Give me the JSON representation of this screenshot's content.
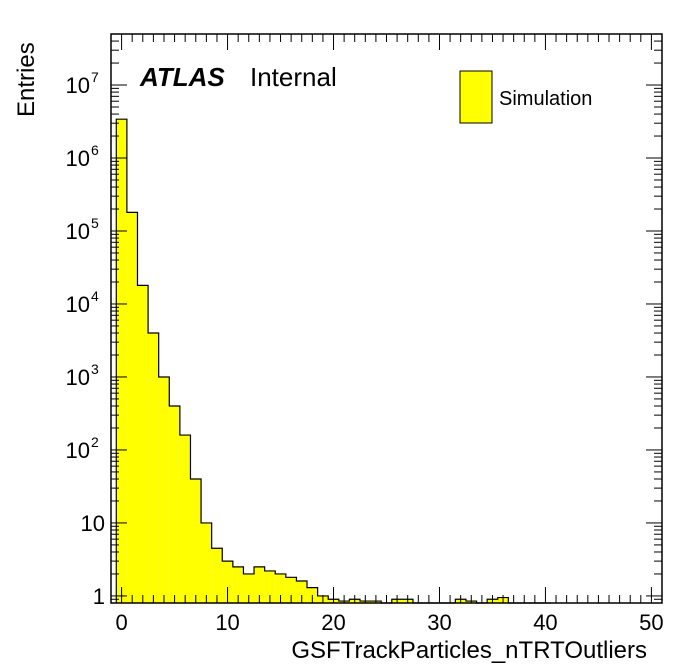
{
  "chart_data": {
    "type": "bar",
    "subtype": "histogram",
    "xlabel": "GSFTrackParticles_nTRTOutliers",
    "ylabel": "Entries",
    "xlim": [
      -1,
      51
    ],
    "ylim": [
      0.8,
      50000000
    ],
    "yscale": "log",
    "bin_width": 1,
    "x_ticks": [
      0,
      10,
      20,
      30,
      40,
      50
    ],
    "y_ticks": [
      {
        "value": 1,
        "base": "1",
        "exp": ""
      },
      {
        "value": 10,
        "base": "10",
        "exp": ""
      },
      {
        "value": 100,
        "base": "10",
        "exp": "2"
      },
      {
        "value": 1000,
        "base": "10",
        "exp": "3"
      },
      {
        "value": 10000,
        "base": "10",
        "exp": "4"
      },
      {
        "value": 100000,
        "base": "10",
        "exp": "5"
      },
      {
        "value": 1000000,
        "base": "10",
        "exp": "6"
      },
      {
        "value": 10000000,
        "base": "10",
        "exp": "7"
      }
    ],
    "fill_color": "#ffff00",
    "line_color": "#000000",
    "legend_position": "top-right",
    "series": [
      {
        "name": "Simulation",
        "bin_low_edges": [
          -0.5,
          0.5,
          1.5,
          2.5,
          3.5,
          4.5,
          5.5,
          6.5,
          7.5,
          8.5,
          9.5,
          10.5,
          11.5,
          12.5,
          13.5,
          14.5,
          15.5,
          16.5,
          17.5,
          18.5,
          19.5,
          20.5,
          21.5,
          22.5,
          23.5,
          24.5,
          25.5,
          26.5,
          27.5,
          28.5,
          29.5,
          30.5,
          31.5,
          32.5,
          33.5,
          34.5,
          35.5,
          36.5,
          37.5,
          38.5,
          39.5
        ],
        "values": [
          3400000,
          180000,
          18000,
          4000,
          1000,
          400,
          160,
          40,
          10,
          4.5,
          3,
          2.5,
          2,
          2.5,
          2.2,
          2,
          1.8,
          1.6,
          1.3,
          1,
          0.9,
          0.85,
          0.9,
          0.85,
          0.85,
          0.8,
          0.9,
          0.9,
          0.8,
          0.8,
          0.75,
          0.7,
          0.9,
          0.85,
          0.75,
          0.9,
          0.95,
          0.8,
          0.8,
          0.75,
          0.5
        ]
      }
    ]
  },
  "annotations": {
    "atlas_label": "ATLAS",
    "atlas_sublabel": "Internal"
  }
}
